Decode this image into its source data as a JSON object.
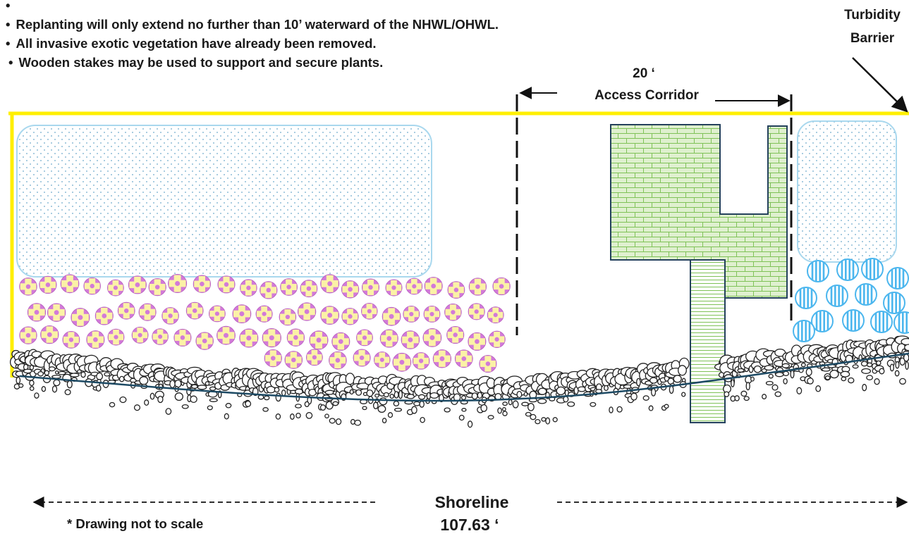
{
  "notes": [
    "Replanting will only extend no further than 10’ waterward of the NHWL/OHWL.",
    "All invasive exotic vegetation have already been removed.",
    "Wooden stakes may be used to support and secure plants."
  ],
  "labels": {
    "barrier_line1": "Turbidity",
    "barrier_line2": "Barrier",
    "corridor_width": "20 ‘",
    "corridor_name": "Access Corridor",
    "shoreline_name": "Shoreline",
    "shoreline_length": "107.63 ‘",
    "scale_note": "* Drawing not to scale"
  },
  "colors": {
    "barrier_line": "#ffef00",
    "planting_zone_border": "#a9d8ee",
    "planting_zone_dots": "#6aa7c9",
    "pink_plant": "#d27ad8",
    "pink_plant_center": "#fbf2a6",
    "blue_plant": "#4bb6ee",
    "dock_fill": "#dff0cf",
    "dock_lines": "#7fc257",
    "dock_outline": "#24415c",
    "shoreline_line": "#1d4a64",
    "rock_outline": "#222222"
  }
}
